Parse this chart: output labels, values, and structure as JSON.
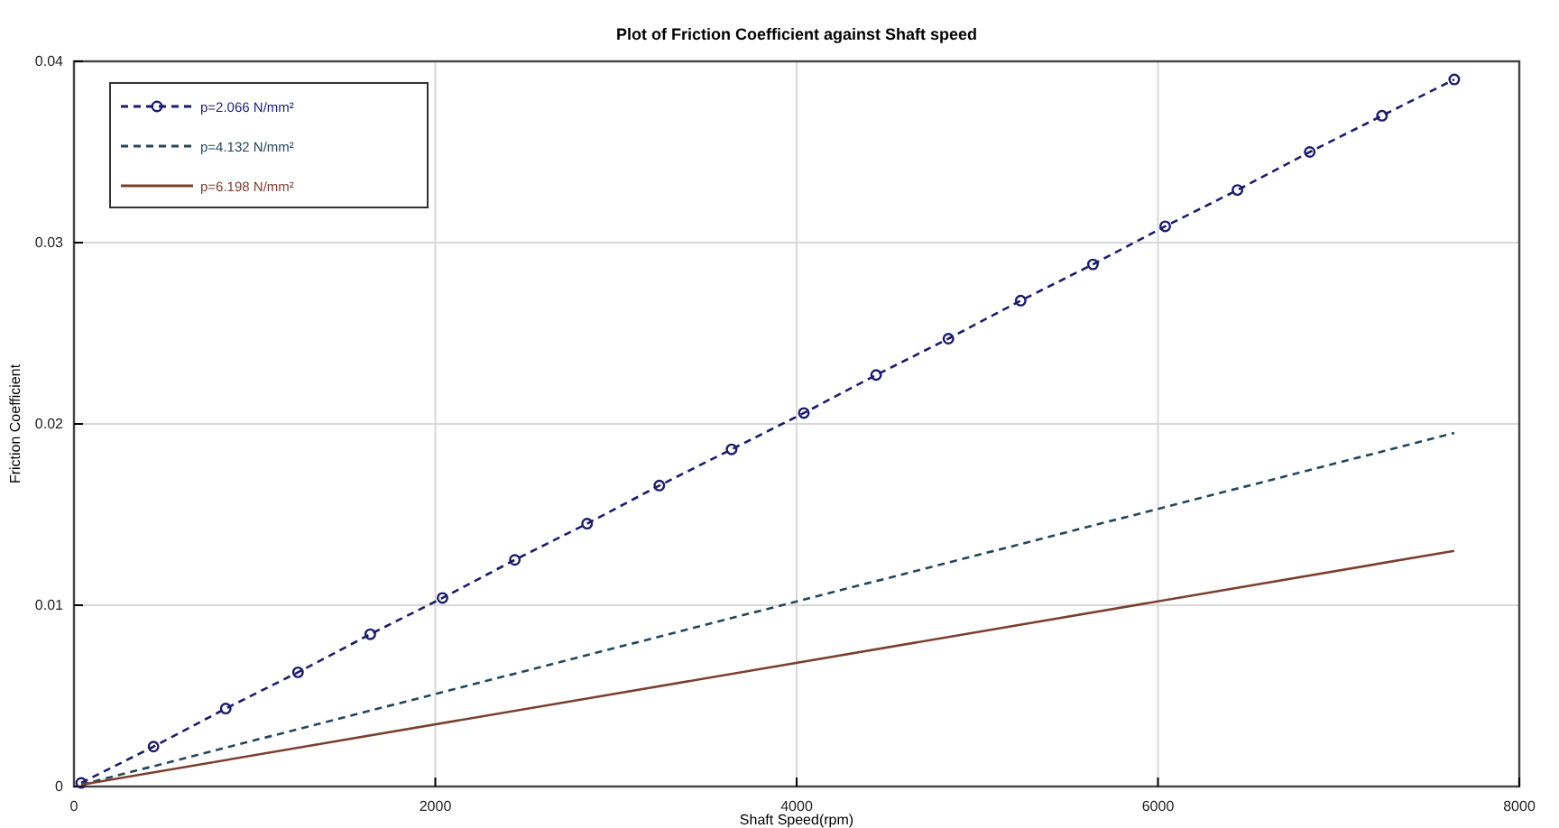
{
  "chart_data": {
    "type": "line",
    "title": "Plot of Friction Coefficient against Shaft speed",
    "xlabel": "Shaft Speed(rpm)",
    "ylabel": "Friction Coefficient",
    "xlim": [
      0,
      8000
    ],
    "xticks": [
      0,
      2000,
      4000,
      6000,
      8000
    ],
    "ylim": [
      0,
      0.04
    ],
    "yticks": [
      0,
      0.01,
      0.02,
      0.03,
      0.04
    ],
    "grid": true,
    "legend": "top left",
    "series": [
      {
        "name": "p=2.066 N/mm²",
        "color": "#1c1c6a",
        "marker": "circle",
        "line_style": "dashed",
        "x": [
          40,
          440,
          840,
          1240,
          1640,
          2040,
          2440,
          2840,
          3240,
          3640,
          4040,
          4440,
          4840,
          5240,
          5640,
          6040,
          6440,
          6840,
          7240,
          7640
        ],
        "values": [
          0.0002,
          0.0022,
          0.0043,
          0.0063,
          0.0084,
          0.0104,
          0.0125,
          0.0145,
          0.0166,
          0.0186,
          0.0206,
          0.0227,
          0.0247,
          0.0268,
          0.0288,
          0.0309,
          0.0329,
          0.035,
          0.037,
          0.039
        ]
      },
      {
        "name": "p=4.132 N/mm²",
        "color": "#24465a",
        "marker": "none",
        "line_style": "dashed",
        "x": [
          40,
          7640
        ],
        "values": [
          0.0001,
          0.0195
        ]
      },
      {
        "name": "p=6.198 N/mm²",
        "color": "#7a4030",
        "marker": "none",
        "line_style": "solid",
        "x": [
          40,
          7640
        ],
        "values": [
          0.0001,
          0.013
        ]
      }
    ]
  }
}
